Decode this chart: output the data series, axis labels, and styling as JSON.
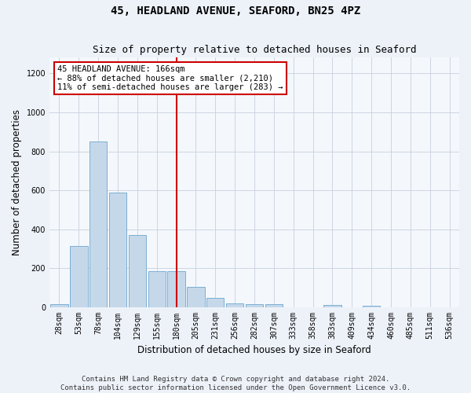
{
  "title": "45, HEADLAND AVENUE, SEAFORD, BN25 4PZ",
  "subtitle": "Size of property relative to detached houses in Seaford",
  "xlabel": "Distribution of detached houses by size in Seaford",
  "ylabel": "Number of detached properties",
  "categories": [
    "28sqm",
    "53sqm",
    "78sqm",
    "104sqm",
    "129sqm",
    "155sqm",
    "180sqm",
    "205sqm",
    "231sqm",
    "256sqm",
    "282sqm",
    "307sqm",
    "333sqm",
    "358sqm",
    "383sqm",
    "409sqm",
    "434sqm",
    "460sqm",
    "485sqm",
    "511sqm",
    "536sqm"
  ],
  "values": [
    15,
    315,
    850,
    590,
    370,
    185,
    185,
    105,
    48,
    20,
    18,
    15,
    0,
    0,
    12,
    0,
    10,
    0,
    0,
    0,
    0
  ],
  "bar_color": "#c5d8ea",
  "bar_edge_color": "#7bafd4",
  "vline_bar_index": 6,
  "vline_color": "#cc0000",
  "annotation_title": "45 HEADLAND AVENUE: 166sqm",
  "annotation_line1": "← 88% of detached houses are smaller (2,210)",
  "annotation_line2": "11% of semi-detached houses are larger (283) →",
  "annotation_box_color": "#ffffff",
  "annotation_box_edge": "#cc0000",
  "ylim": [
    0,
    1280
  ],
  "yticks": [
    0,
    200,
    400,
    600,
    800,
    1000,
    1200
  ],
  "footer_line1": "Contains HM Land Registry data © Crown copyright and database right 2024.",
  "footer_line2": "Contains public sector information licensed under the Open Government Licence v3.0.",
  "bg_color": "#edf2f9",
  "plot_bg_color": "#f4f8fc",
  "grid_color": "#c8d0dc",
  "title_fontsize": 10,
  "subtitle_fontsize": 9,
  "axis_label_fontsize": 8.5,
  "tick_fontsize": 7,
  "footer_fontsize": 6.5,
  "annotation_fontsize": 7.5
}
